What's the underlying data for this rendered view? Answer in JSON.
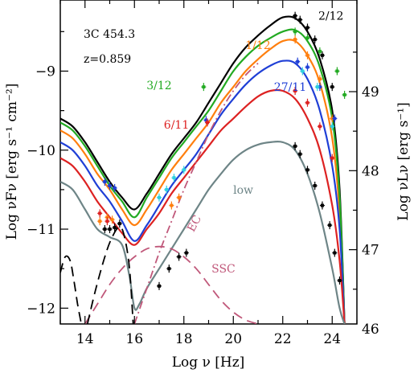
{
  "chart_data": {
    "type": "line",
    "source": "3C 454.3",
    "redshift": "z=0.859",
    "xlabel": "Log ν [Hz]",
    "ylabel_left": "Log νFν [erg s⁻¹ cm⁻²]",
    "ylabel_right": "Log νLν [erg s⁻¹]",
    "xlim": [
      13,
      25
    ],
    "ylim": [
      -12.2,
      -8.1
    ],
    "right_axis_offset": 58.26,
    "x_ticks": [
      14,
      16,
      18,
      20,
      22,
      24
    ],
    "y_ticks": [
      -12,
      -11,
      -10,
      -9
    ],
    "y_right_ticks": [
      46,
      47,
      48,
      49
    ],
    "x_tick_labels": [
      "14",
      "16",
      "18",
      "20",
      "22",
      "24"
    ],
    "y_tick_labels": [
      "−12",
      "−11",
      "−10",
      "−9"
    ],
    "y_right_tick_labels": [
      "46",
      "47",
      "48",
      "49"
    ],
    "series": [
      {
        "name": "2/12",
        "color": "#000000",
        "style": "solid",
        "x": [
          13,
          13.5,
          14,
          14.5,
          15,
          15.5,
          16,
          16.5,
          17,
          17.5,
          18,
          18.5,
          19,
          19.5,
          20,
          20.5,
          21,
          21.5,
          22,
          22.5,
          23,
          23.5,
          24,
          24.3,
          24.5
        ],
        "y": [
          -9.6,
          -9.7,
          -9.9,
          -10.15,
          -10.4,
          -10.6,
          -10.75,
          -10.55,
          -10.3,
          -10.05,
          -9.85,
          -9.65,
          -9.4,
          -9.15,
          -8.9,
          -8.7,
          -8.55,
          -8.42,
          -8.32,
          -8.33,
          -8.5,
          -8.85,
          -9.5,
          -10.5,
          -12.2
        ]
      },
      {
        "name": "1/12",
        "color": "#ff7f0e",
        "style": "solid",
        "x": [
          13,
          13.5,
          14,
          14.5,
          15,
          15.5,
          16,
          16.5,
          17,
          17.5,
          18,
          18.5,
          19,
          19.5,
          20,
          20.5,
          21,
          21.5,
          22,
          22.5,
          23,
          23.5,
          24,
          24.3,
          24.5
        ],
        "y": [
          -9.75,
          -9.85,
          -10.05,
          -10.3,
          -10.5,
          -10.75,
          -10.95,
          -10.75,
          -10.5,
          -10.25,
          -10.05,
          -9.85,
          -9.65,
          -9.4,
          -9.2,
          -9.0,
          -8.85,
          -8.72,
          -8.62,
          -8.62,
          -8.8,
          -9.15,
          -9.85,
          -10.8,
          -12.2
        ]
      },
      {
        "name": "3/12",
        "color": "#22aa22",
        "style": "solid",
        "x": [
          13,
          13.5,
          14,
          14.5,
          15,
          15.5,
          16,
          16.5,
          17,
          17.5,
          18,
          18.5,
          19,
          19.5,
          20,
          20.5,
          21,
          21.5,
          22,
          22.5,
          23,
          23.5,
          24,
          24.3,
          24.5
        ],
        "y": [
          -9.65,
          -9.75,
          -9.95,
          -10.2,
          -10.45,
          -10.65,
          -10.85,
          -10.6,
          -10.35,
          -10.1,
          -9.9,
          -9.7,
          -9.5,
          -9.25,
          -9.0,
          -8.82,
          -8.68,
          -8.58,
          -8.5,
          -8.48,
          -8.62,
          -8.95,
          -9.6,
          -10.6,
          -12.2
        ]
      },
      {
        "name": "27/11",
        "color": "#1f3fd6",
        "style": "solid",
        "x": [
          13,
          13.5,
          14,
          14.5,
          15,
          15.5,
          16,
          16.5,
          17,
          17.5,
          18,
          18.5,
          19,
          19.5,
          20,
          20.5,
          21,
          21.5,
          22,
          22.5,
          23,
          23.5,
          24,
          24.3,
          24.5
        ],
        "y": [
          -9.9,
          -10.0,
          -10.2,
          -10.45,
          -10.65,
          -10.9,
          -11.15,
          -10.95,
          -10.7,
          -10.45,
          -10.25,
          -10.05,
          -9.8,
          -9.55,
          -9.35,
          -9.17,
          -9.03,
          -8.93,
          -8.87,
          -8.9,
          -9.1,
          -9.5,
          -10.2,
          -11.0,
          -12.2
        ]
      },
      {
        "name": "6/11",
        "color": "#dd2222",
        "style": "solid",
        "x": [
          13,
          13.5,
          14,
          14.5,
          15,
          15.5,
          16,
          16.5,
          17,
          17.5,
          18,
          18.5,
          19,
          19.5,
          20,
          20.5,
          21,
          21.5,
          22,
          22.5,
          23,
          23.5,
          24,
          24.3,
          24.5
        ],
        "y": [
          -10.1,
          -10.2,
          -10.4,
          -10.65,
          -10.85,
          -11.05,
          -11.2,
          -11.0,
          -10.8,
          -10.55,
          -10.35,
          -10.15,
          -9.95,
          -9.75,
          -9.6,
          -9.45,
          -9.32,
          -9.25,
          -9.25,
          -9.35,
          -9.6,
          -10.0,
          -10.7,
          -11.4,
          -12.2
        ]
      },
      {
        "name": "low",
        "color": "#6e8587",
        "style": "solid",
        "x": [
          13,
          13.5,
          14,
          14.5,
          15,
          15.5,
          15.8,
          16,
          16.2,
          16.5,
          17,
          17.5,
          18,
          18.5,
          19,
          19.5,
          20,
          20.5,
          21,
          21.5,
          22,
          22.5,
          23,
          23.5,
          24,
          24.3,
          24.5
        ],
        "y": [
          -10.4,
          -10.5,
          -10.75,
          -11.0,
          -11.1,
          -11.2,
          -11.6,
          -12.0,
          -11.95,
          -11.75,
          -11.5,
          -11.25,
          -11.0,
          -10.75,
          -10.5,
          -10.3,
          -10.12,
          -10.0,
          -9.93,
          -9.9,
          -9.9,
          -10.0,
          -10.3,
          -10.8,
          -11.5,
          -12.0,
          -12.2
        ]
      },
      {
        "name": "EC",
        "color": "#c0587a",
        "style": "dashdot",
        "x": [
          16.0,
          16.5,
          17.0,
          17.5,
          18,
          18.5,
          19,
          19.5,
          20,
          20.5,
          21
        ],
        "y": [
          -12.2,
          -11.75,
          -11.3,
          -10.9,
          -10.5,
          -10.15,
          -9.8,
          -9.5,
          -9.25,
          -9.05,
          -8.9
        ]
      },
      {
        "name": "SSC",
        "color": "#c0587a",
        "style": "dashed",
        "x": [
          14.0,
          14.5,
          15,
          15.5,
          16,
          16.5,
          17,
          17.5,
          18,
          18.5,
          19,
          19.5,
          20,
          20.5,
          21
        ],
        "y": [
          -12.2,
          -11.95,
          -11.7,
          -11.5,
          -11.35,
          -11.25,
          -11.22,
          -11.25,
          -11.35,
          -11.5,
          -11.7,
          -11.9,
          -12.05,
          -12.15,
          -12.2
        ]
      },
      {
        "name": "",
        "color": "#000000",
        "style": "dashed",
        "x": [
          13.0,
          13.2,
          13.4,
          13.55,
          13.7,
          13.85
        ],
        "y": [
          -11.55,
          -11.35,
          -11.4,
          -11.65,
          -11.95,
          -12.2
        ]
      },
      {
        "name": "",
        "color": "#000000",
        "style": "dashed",
        "x": [
          14.1,
          14.4,
          14.8,
          15.1,
          15.4,
          15.6,
          15.8,
          15.95
        ],
        "y": [
          -12.2,
          -11.8,
          -11.35,
          -11.1,
          -10.97,
          -11.1,
          -11.5,
          -12.2
        ]
      }
    ],
    "points": [
      {
        "color": "#000000",
        "data": [
          [
            22.5,
            -8.3
          ],
          [
            22.7,
            -8.35
          ],
          [
            23.0,
            -8.45
          ],
          [
            23.3,
            -8.6
          ],
          [
            23.6,
            -8.8
          ],
          [
            24.0,
            -9.2
          ],
          [
            14.8,
            -11.0
          ],
          [
            15.0,
            -11.0
          ],
          [
            15.2,
            -10.98
          ],
          [
            15.4,
            -10.93
          ],
          [
            17.0,
            -11.72
          ],
          [
            17.4,
            -11.5
          ],
          [
            17.8,
            -11.35
          ],
          [
            18.1,
            -11.3
          ],
          [
            22.5,
            -9.95
          ],
          [
            22.7,
            -10.05
          ],
          [
            23.0,
            -10.25
          ],
          [
            23.3,
            -10.45
          ],
          [
            23.6,
            -10.7
          ],
          [
            23.9,
            -10.95
          ],
          [
            24.1,
            -11.3
          ],
          [
            24.3,
            -11.65
          ]
        ]
      },
      {
        "color": "#22aa22",
        "data": [
          [
            18.8,
            -9.2
          ],
          [
            22.5,
            -8.5
          ],
          [
            23.0,
            -8.58
          ],
          [
            23.5,
            -8.75
          ],
          [
            24.2,
            -9.0
          ],
          [
            24.5,
            -9.3
          ]
        ]
      },
      {
        "color": "#ff7f0e",
        "data": [
          [
            14.6,
            -10.9
          ],
          [
            14.9,
            -10.85
          ],
          [
            15.1,
            -10.88
          ],
          [
            22.5,
            -8.6
          ],
          [
            23.0,
            -8.8
          ],
          [
            23.5,
            -9.1
          ],
          [
            24.0,
            -9.6
          ],
          [
            17.5,
            -10.7
          ],
          [
            17.8,
            -10.6
          ]
        ]
      },
      {
        "color": "#1f3fd6",
        "data": [
          [
            18.9,
            -9.62
          ],
          [
            22.6,
            -8.88
          ],
          [
            23.0,
            -8.95
          ],
          [
            23.5,
            -9.2
          ],
          [
            24.1,
            -9.6
          ],
          [
            14.8,
            -10.4
          ],
          [
            15.0,
            -10.45
          ],
          [
            15.2,
            -10.48
          ]
        ]
      },
      {
        "color": "#dd2222",
        "data": [
          [
            18.95,
            -9.65
          ],
          [
            22.5,
            -9.25
          ],
          [
            23.0,
            -9.4
          ],
          [
            23.5,
            -9.7
          ],
          [
            24.0,
            -10.1
          ],
          [
            14.6,
            -10.8
          ],
          [
            14.9,
            -10.9
          ]
        ]
      },
      {
        "color": "#2fd0e0",
        "data": [
          [
            17.0,
            -10.6
          ],
          [
            17.3,
            -10.5
          ],
          [
            17.6,
            -10.35
          ],
          [
            18.0,
            -10.25
          ],
          [
            22.8,
            -9.0
          ],
          [
            23.4,
            -9.2
          ],
          [
            24.0,
            -9.7
          ]
        ]
      }
    ],
    "annotations": [
      {
        "text": "2/12",
        "x": 23.95,
        "y": -8.35,
        "color": "#000000"
      },
      {
        "text": "1/12",
        "x": 21.0,
        "y": -8.72,
        "color": "#ff7f0e"
      },
      {
        "text": "3/12",
        "x": 17.0,
        "y": -9.23,
        "color": "#22aa22"
      },
      {
        "text": "27/11",
        "x": 22.3,
        "y": -9.25,
        "color": "#1f3fd6"
      },
      {
        "text": "6/11",
        "x": 17.7,
        "y": -9.73,
        "color": "#dd2222"
      },
      {
        "text": "low",
        "x": 20.4,
        "y": -10.55,
        "color": "#6e8587"
      },
      {
        "text": "EC",
        "x": 18.55,
        "y": -10.95,
        "color": "#c0587a",
        "rotate": -62
      },
      {
        "text": "SSC",
        "x": 19.6,
        "y": -11.55,
        "color": "#c0587a"
      }
    ],
    "grid": false,
    "legend": "none"
  }
}
